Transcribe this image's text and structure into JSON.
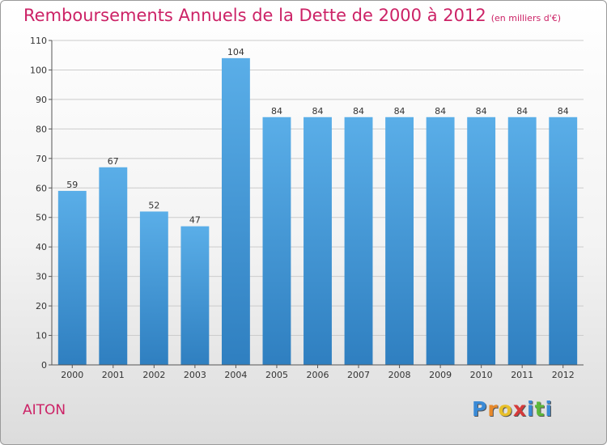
{
  "chart_data": {
    "type": "bar",
    "title": "Remboursements Annuels de la Dette de 2000 à 2012",
    "subtitle": "(en milliers d'€)",
    "categories": [
      "2000",
      "2001",
      "2002",
      "2003",
      "2004",
      "2005",
      "2006",
      "2007",
      "2008",
      "2009",
      "2010",
      "2011",
      "2012"
    ],
    "values": [
      59,
      67,
      52,
      47,
      104,
      84,
      84,
      84,
      84,
      84,
      84,
      84,
      84
    ],
    "ylim": [
      0,
      110
    ],
    "yticks": [
      0,
      10,
      20,
      30,
      40,
      50,
      60,
      70,
      80,
      90,
      100,
      110
    ],
    "grid": true,
    "bar_color_top": "#5aaee8",
    "bar_color_bottom": "#2f7fc0"
  },
  "footer": {
    "commune": "AITON",
    "logo_letters": [
      "P",
      "r",
      "o",
      "x",
      "i",
      "t",
      "i"
    ],
    "logo_colors": [
      "#3a8ad6",
      "#e8892a",
      "#e8c02a",
      "#d63a3a",
      "#3a8ad6",
      "#5cb83a",
      "#3a8ad6"
    ]
  },
  "colors": {
    "title": "#cc2266",
    "grid": "#cccccc"
  }
}
